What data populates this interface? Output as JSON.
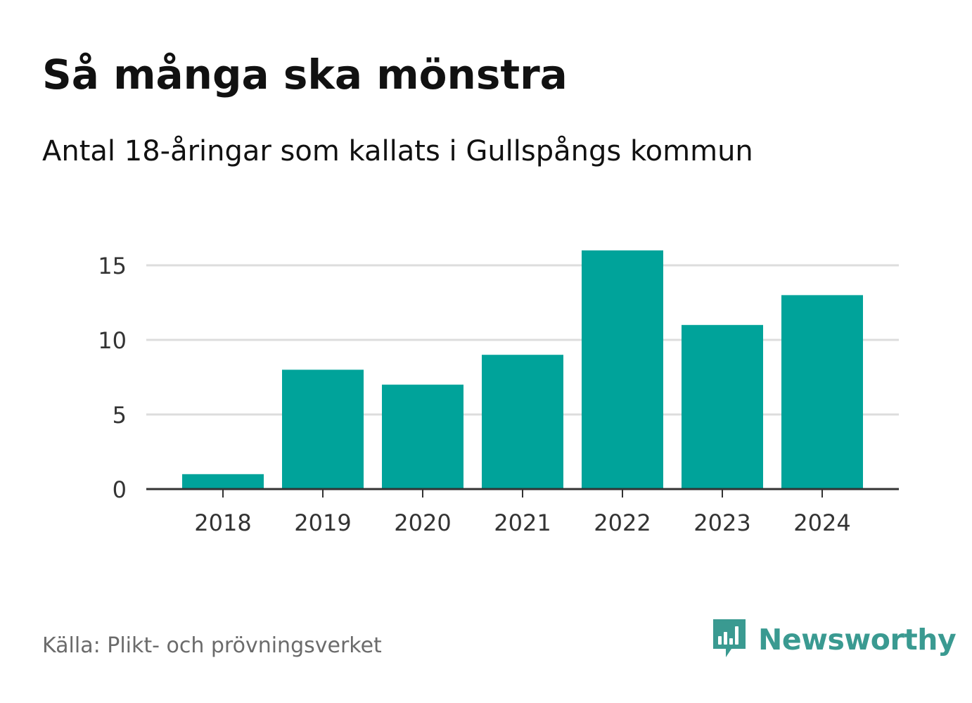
{
  "header": {
    "title": "Så många ska mönstra",
    "subtitle": "Antal 18-åringar som kallats i Gullspångs kommun"
  },
  "footer": {
    "source": "Källa: Plikt- och prövningsverket",
    "brand_name": "Newsworthy",
    "brand_icon": "newsworthy-logo-icon"
  },
  "colors": {
    "bar": "#00a39a",
    "grid": "#dddddd",
    "axis": "#333333",
    "brand": "#3a9a91"
  },
  "chart_data": {
    "type": "bar",
    "categories": [
      "2018",
      "2019",
      "2020",
      "2021",
      "2022",
      "2023",
      "2024"
    ],
    "values": [
      1,
      8,
      7,
      9,
      16,
      11,
      13
    ],
    "title": "Så många ska mönstra",
    "subtitle": "Antal 18-åringar som kallats i Gullspångs kommun",
    "xlabel": "",
    "ylabel": "",
    "ylim": [
      0,
      16
    ],
    "yticks": [
      0,
      5,
      10,
      15
    ],
    "grid": true,
    "legend": "none"
  }
}
